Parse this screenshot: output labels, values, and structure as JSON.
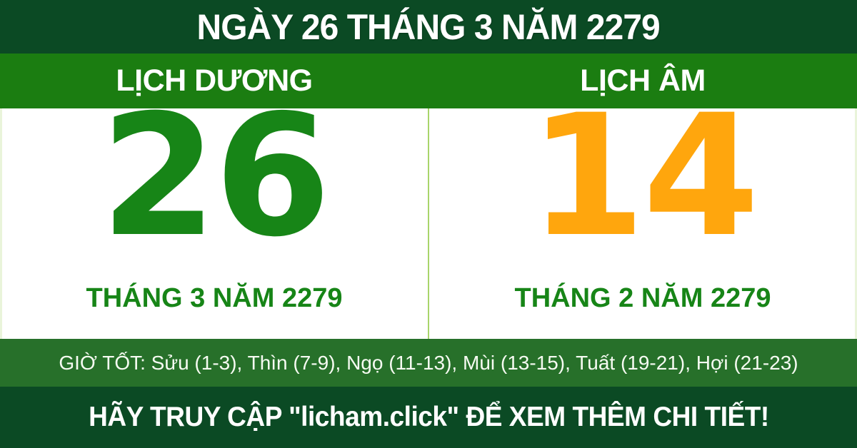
{
  "header": {
    "title": "NGÀY 26 THÁNG 3 NĂM 2279"
  },
  "calendars": {
    "solar": {
      "label": "LỊCH DƯƠNG",
      "day": "26",
      "month_year": "THÁNG 3 NĂM 2279",
      "day_color": "#178517"
    },
    "lunar": {
      "label": "LỊCH ÂM",
      "day": "14",
      "month_year": "THÁNG 2 NĂM 2279",
      "day_color": "#ffa60d"
    }
  },
  "good_hours": {
    "text": "GIỜ TỐT: Sửu (1-3), Thìn (7-9), Ngọ (11-13), Mùi (13-15), Tuất (19-21), Hợi (21-23)"
  },
  "footer": {
    "text": "HÃY TRUY CẬP \"licham.click\" ĐỂ XEM THÊM CHI TIẾT!"
  },
  "colors": {
    "dark_green": "#0b4a24",
    "band_green": "#1b7d11",
    "good_hours_green": "#27702a",
    "solar_green": "#178517",
    "lunar_orange": "#ffa60d",
    "divider_light_green": "#a8d56a",
    "text_white": "#ffffff"
  }
}
